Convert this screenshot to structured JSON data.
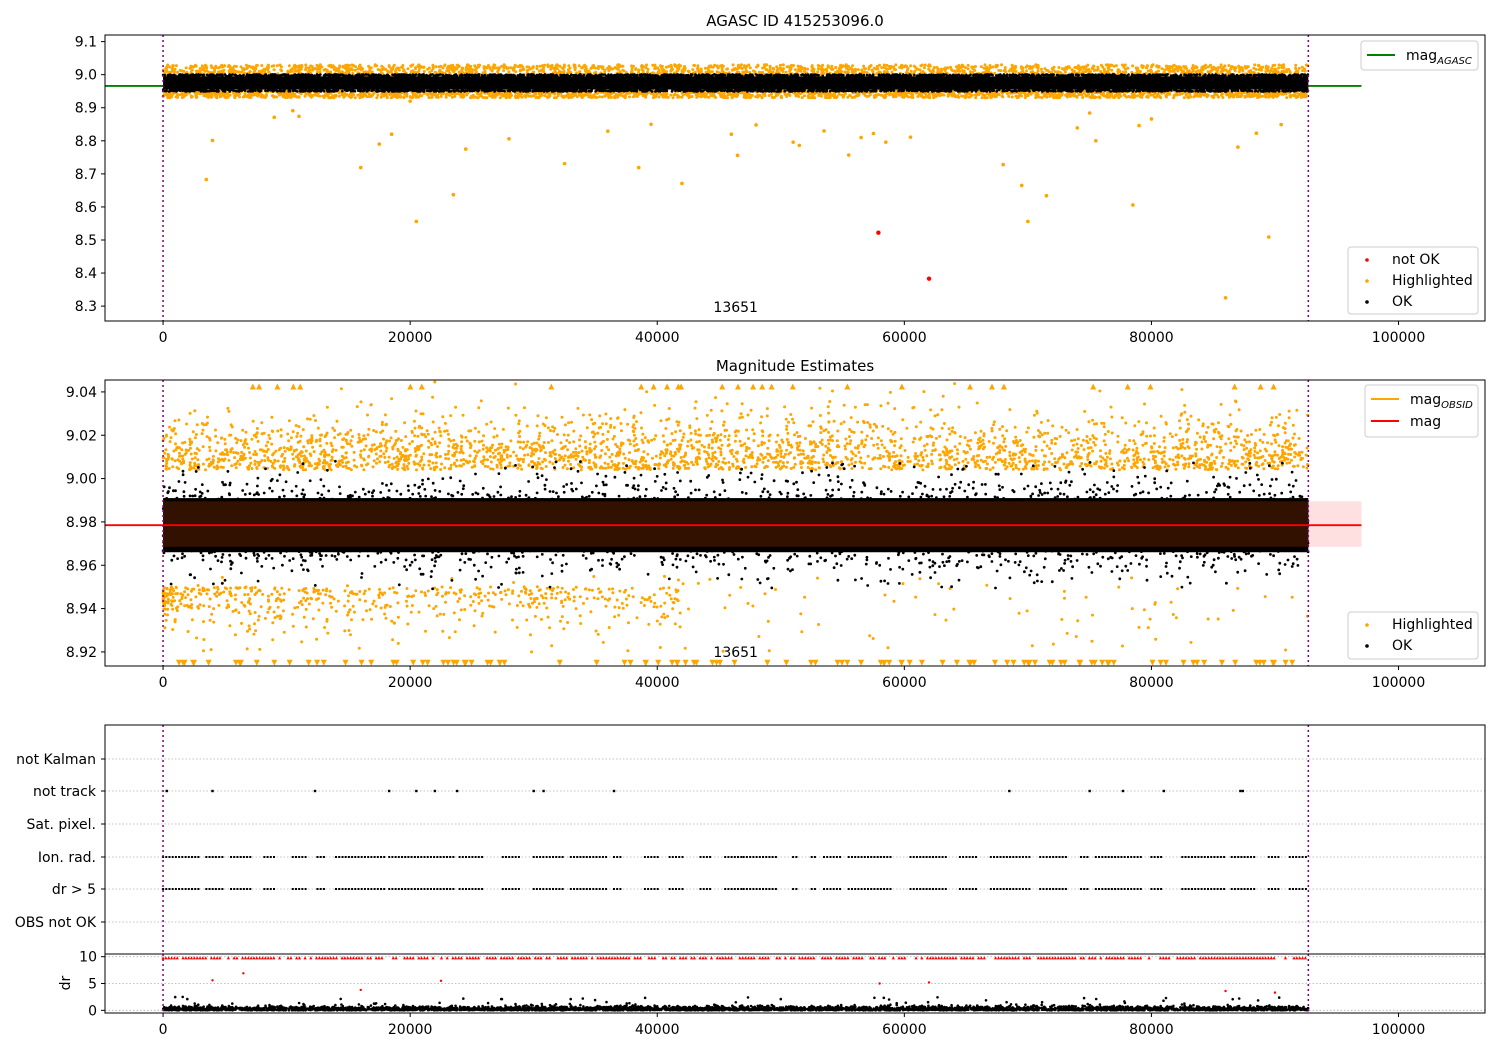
{
  "chart_data": [
    {
      "type": "scatter",
      "title": "AGASC ID 415253096.0",
      "xlim": [
        -4700,
        107000
      ],
      "ylim": [
        8.255,
        9.12
      ],
      "xticks": [
        0,
        20000,
        40000,
        60000,
        80000,
        100000
      ],
      "yticks": [
        8.3,
        8.4,
        8.5,
        8.6,
        8.7,
        8.8,
        8.9,
        9.0,
        9.1
      ],
      "ytick_labels": [
        "8.3",
        "8.4",
        "8.5",
        "8.6",
        "8.7",
        "8.8",
        "8.9",
        "9.0",
        "9.1"
      ],
      "obsid_lines": [
        0,
        92700
      ],
      "obsid_label": {
        "x": 46350,
        "text": "13651"
      },
      "grid": false,
      "legend_upper": {
        "position": "upper right",
        "entries": [
          {
            "label_main": "mag",
            "label_sub": "AGASC",
            "color": "#008000",
            "kind": "line"
          }
        ]
      },
      "legend_lower": {
        "position": "lower right",
        "entries": [
          {
            "label": "not OK",
            "color": "#ff0000"
          },
          {
            "label": "Highlighted",
            "color": "#ffa500"
          },
          {
            "label": "OK",
            "color": "#000000"
          }
        ]
      },
      "mag_agasc": 8.966,
      "ok_band": {
        "x": [
          0,
          92700
        ],
        "low": 8.955,
        "high": 8.995
      },
      "series": [
        {
          "name": "not OK",
          "color": "#ff0000",
          "points": [
            [
              57900,
              8.522
            ],
            [
              62000,
              8.383
            ]
          ]
        },
        {
          "name": "Highlighted",
          "color": "#ffa500",
          "points": [
            [
              3500,
              8.683
            ],
            [
              4000,
              8.801
            ],
            [
              9000,
              8.871
            ],
            [
              10500,
              8.891
            ],
            [
              11000,
              8.874
            ],
            [
              14500,
              8.94
            ],
            [
              16000,
              8.719
            ],
            [
              17500,
              8.79
            ],
            [
              18500,
              8.82
            ],
            [
              20500,
              8.556
            ],
            [
              20000,
              8.92
            ],
            [
              23500,
              8.637
            ],
            [
              24500,
              8.775
            ],
            [
              28000,
              8.806
            ],
            [
              32500,
              8.731
            ],
            [
              36000,
              8.829
            ],
            [
              38500,
              8.719
            ],
            [
              39500,
              8.85
            ],
            [
              42000,
              8.671
            ],
            [
              46000,
              8.82
            ],
            [
              46500,
              8.756
            ],
            [
              48000,
              8.848
            ],
            [
              51000,
              8.796
            ],
            [
              51500,
              8.786
            ],
            [
              53500,
              8.83
            ],
            [
              55500,
              8.757
            ],
            [
              56500,
              8.81
            ],
            [
              57500,
              8.822
            ],
            [
              58500,
              8.796
            ],
            [
              60500,
              8.811
            ],
            [
              68000,
              8.728
            ],
            [
              69500,
              8.665
            ],
            [
              70000,
              8.556
            ],
            [
              71500,
              8.634
            ],
            [
              74000,
              8.839
            ],
            [
              75000,
              8.884
            ],
            [
              75500,
              8.8
            ],
            [
              78500,
              8.606
            ],
            [
              79000,
              8.846
            ],
            [
              80000,
              8.866
            ],
            [
              86000,
              8.325
            ],
            [
              87000,
              8.781
            ],
            [
              88500,
              8.823
            ],
            [
              89500,
              8.509
            ],
            [
              90500,
              8.849
            ]
          ]
        }
      ]
    },
    {
      "type": "scatter",
      "title": "Magnitude Estimates",
      "xlim": [
        -4700,
        107000
      ],
      "ylim": [
        8.9135,
        9.0455
      ],
      "xticks": [
        0,
        20000,
        40000,
        60000,
        80000,
        100000
      ],
      "yticks": [
        8.92,
        8.94,
        8.96,
        8.98,
        9.0,
        9.02,
        9.04
      ],
      "ytick_labels": [
        "8.92",
        "8.94",
        "8.96",
        "8.98",
        "9.00",
        "9.02",
        "9.04"
      ],
      "obsid_lines": [
        0,
        92700
      ],
      "obsid_label": {
        "x": 46350,
        "text": "13651"
      },
      "grid": false,
      "legend_upper": {
        "position": "upper right",
        "entries": [
          {
            "label_main": "mag",
            "label_sub": "OBSID",
            "color": "#ffa500",
            "kind": "line"
          },
          {
            "label_main": "mag",
            "label_sub": "",
            "color": "#ff0000",
            "kind": "line"
          }
        ]
      },
      "legend_lower": {
        "position": "lower right",
        "entries": [
          {
            "label": "Highlighted",
            "color": "#ffa500"
          },
          {
            "label": "OK",
            "color": "#000000"
          }
        ]
      },
      "mag": 8.9785,
      "mag_band": [
        8.9685,
        8.9895
      ],
      "mag_obsid": 8.9785,
      "dense_band": {
        "x": [
          0,
          92700
        ],
        "low": 8.966,
        "high": 8.991
      },
      "series": []
    },
    {
      "type": "scatter",
      "title": "",
      "xlim": [
        -4700,
        107000
      ],
      "yticks_categories": [
        "not Kalman",
        "not track",
        "Sat. pixel.",
        "Ion. rad.",
        "dr > 5",
        "OBS not OK"
      ],
      "obsid_lines": [
        0,
        92700
      ],
      "flag_points": {
        "not track": [
          300,
          4000,
          12300,
          18300,
          20500,
          22000,
          23800,
          30000,
          30800,
          36500,
          68500,
          75000,
          77700,
          81000,
          87200,
          87400
        ],
        "Ion. rad.": "continuous-segments",
        "dr > 5": "continuous-segments"
      },
      "grid": true
    },
    {
      "type": "scatter",
      "title": "",
      "ylabel": "dr",
      "xlim": [
        -4700,
        107000
      ],
      "ylim": [
        -0.5,
        10.5
      ],
      "xticks": [
        0,
        20000,
        40000,
        60000,
        80000,
        100000
      ],
      "yticks": [
        0,
        5,
        10
      ],
      "ytick_labels": [
        "0",
        "5",
        "10"
      ],
      "obsid_lines": [
        0,
        92700
      ],
      "grid": true,
      "series": [
        {
          "name": "dr > 5",
          "color": "#ff0000",
          "points": [
            [
              4000,
              5.6
            ],
            [
              6500,
              6.9
            ],
            [
              16000,
              3.8
            ],
            [
              22500,
              5.5
            ],
            [
              58000,
              5.0
            ],
            [
              62000,
              5.2
            ],
            [
              86000,
              3.6
            ],
            [
              90000,
              3.3
            ]
          ]
        }
      ]
    }
  ]
}
